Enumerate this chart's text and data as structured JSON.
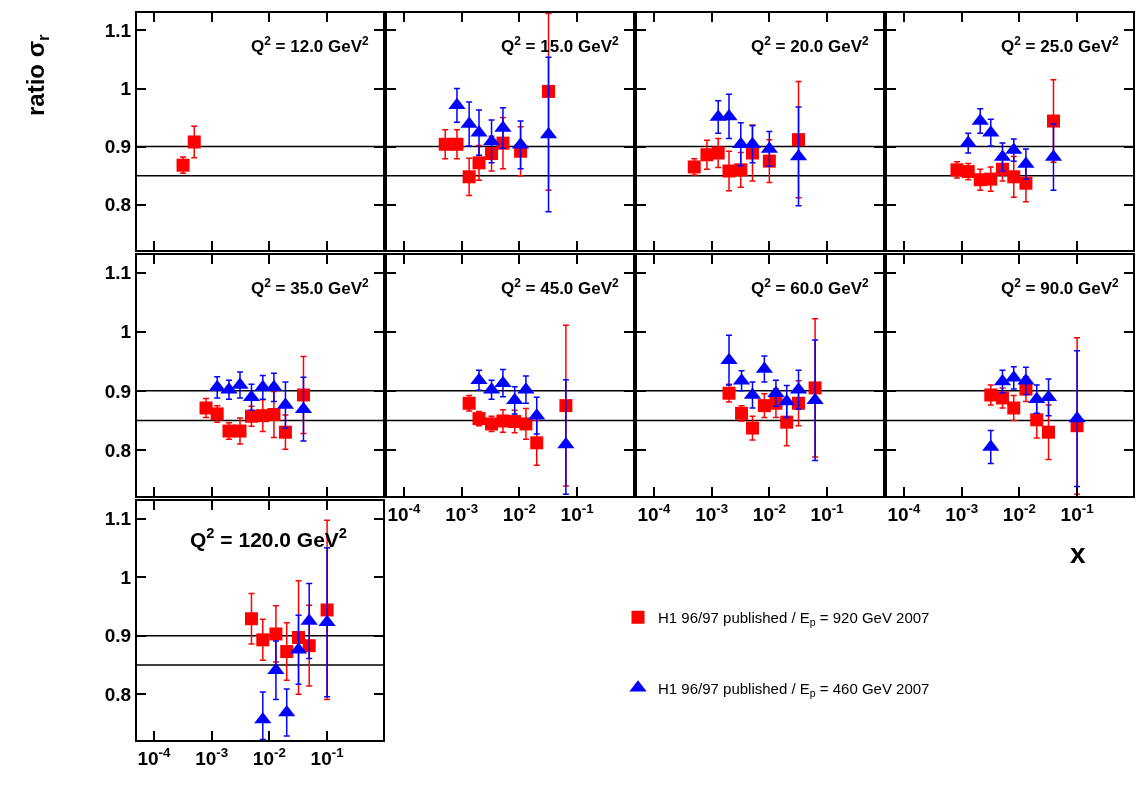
{
  "chart_data": [
    {
      "type": "scatter",
      "title": "Q$^{2}$ = 12.0 GeV$^{2}$",
      "ylabel": "ratio σ$_{r}$",
      "log": "x",
      "xlim": [
        5.1e-05,
        0.93
      ],
      "ylim": [
        0.722,
        1.13
      ],
      "xticks": [
        {
          "value": 0.0001,
          "label": "10$^{-4}$"
        },
        {
          "value": 0.001,
          "label": "10$^{-3}$"
        },
        {
          "value": 0.01,
          "label": "10$^{-2}$"
        },
        {
          "value": 0.1,
          "label": "10$^{-1}$"
        }
      ],
      "yticks": [
        0.8,
        0.9,
        1,
        1.1
      ],
      "tick_labels": "y",
      "grid": false,
      "ref_lines": [
        {
          "axis": "y",
          "value": 0.9,
          "color": "#000000"
        },
        {
          "axis": "y",
          "value": 0.85,
          "color": "#000000"
        }
      ],
      "series": [
        {
          "color": "#ff0000",
          "marker": "square",
          "x": [
            0.00032,
            0.0005
          ],
          "values": [
            0.868,
            0.908
          ],
          "errors": [
            0.014,
            0.027
          ]
        }
      ]
    },
    {
      "type": "scatter",
      "title": "Q$^{2}$ = 15.0 GeV$^{2}$",
      "log": "x",
      "xlim": [
        5.1e-05,
        0.93
      ],
      "ylim": [
        0.722,
        1.13
      ],
      "xticks": [
        {
          "value": 0.0001,
          "label": "10$^{-4}$"
        },
        {
          "value": 0.001,
          "label": "10$^{-3}$"
        },
        {
          "value": 0.01,
          "label": "10$^{-2}$"
        },
        {
          "value": 0.1,
          "label": "10$^{-1}$"
        }
      ],
      "yticks": [
        0.8,
        0.9,
        1,
        1.1
      ],
      "tick_labels": false,
      "grid": false,
      "ref_lines": [
        {
          "axis": "y",
          "value": 0.9,
          "color": "#000000"
        },
        {
          "axis": "y",
          "value": 0.85,
          "color": "#000000"
        }
      ],
      "series": [
        {
          "color": "#ff0000",
          "marker": "square",
          "x": [
            0.00052,
            0.00083,
            0.00135,
            0.002,
            0.0033,
            0.0052,
            0.0105,
            0.032
          ],
          "values": [
            0.904,
            0.904,
            0.848,
            0.872,
            0.888,
            0.906,
            0.892,
            0.995
          ],
          "errors": [
            0.025,
            0.025,
            0.032,
            0.03,
            0.03,
            0.044,
            0.042,
            [
              0.825,
              1.129
            ]
          ]
        },
        {
          "color": "#0000ff",
          "marker": "triangle",
          "x": [
            0.00083,
            0.00135,
            0.002,
            0.0033,
            0.0052,
            0.0105,
            0.032
          ],
          "values": [
            0.971,
            0.939,
            0.924,
            0.909,
            0.932,
            0.903,
            0.921
          ],
          "errors": [
            0.029,
            0.038,
            0.039,
            0.037,
            0.035,
            0.041,
            0.133
          ]
        }
      ]
    },
    {
      "type": "scatter",
      "title": "Q$^{2}$ = 20.0 GeV$^{2}$",
      "log": "x",
      "xlim": [
        5.1e-05,
        0.93
      ],
      "ylim": [
        0.722,
        1.13
      ],
      "xticks": [
        {
          "value": 0.0001,
          "label": "10$^{-4}$"
        },
        {
          "value": 0.001,
          "label": "10$^{-3}$"
        },
        {
          "value": 0.01,
          "label": "10$^{-2}$"
        },
        {
          "value": 0.1,
          "label": "10$^{-1}$"
        }
      ],
      "yticks": [
        0.8,
        0.9,
        1,
        1.1
      ],
      "tick_labels": false,
      "grid": false,
      "ref_lines": [
        {
          "axis": "y",
          "value": 0.9,
          "color": "#000000"
        },
        {
          "axis": "y",
          "value": 0.85,
          "color": "#000000"
        }
      ],
      "series": [
        {
          "color": "#ff0000",
          "marker": "square",
          "x": [
            0.0005,
            0.00083,
            0.0013,
            0.002,
            0.0032,
            0.0051,
            0.01,
            0.032
          ],
          "values": [
            0.865,
            0.886,
            0.889,
            0.858,
            0.86,
            0.889,
            0.875,
            0.912
          ],
          "errors": [
            0.014,
            0.025,
            0.025,
            0.034,
            0.03,
            0.048,
            0.037,
            0.1
          ]
        },
        {
          "color": "#0000ff",
          "marker": "triangle",
          "x": [
            0.0013,
            0.002,
            0.0032,
            0.0051,
            0.01,
            0.032
          ],
          "values": [
            0.951,
            0.952,
            0.904,
            0.904,
            0.896,
            0.883
          ],
          "errors": [
            0.028,
            0.038,
            0.037,
            0.032,
            0.03,
            0.085
          ]
        }
      ]
    },
    {
      "type": "scatter",
      "title": "Q$^{2}$ = 25.0 GeV$^{2}$",
      "log": "x",
      "xlim": [
        5.1e-05,
        0.93
      ],
      "ylim": [
        0.722,
        1.13
      ],
      "xticks": [
        {
          "value": 0.0001,
          "label": "10$^{-4}$"
        },
        {
          "value": 0.001,
          "label": "10$^{-3}$"
        },
        {
          "value": 0.01,
          "label": "10$^{-2}$"
        },
        {
          "value": 0.1,
          "label": "10$^{-1}$"
        }
      ],
      "yticks": [
        0.8,
        0.9,
        1,
        1.1
      ],
      "tick_labels": false,
      "grid": false,
      "ref_lines": [
        {
          "axis": "y",
          "value": 0.9,
          "color": "#000000"
        },
        {
          "axis": "y",
          "value": 0.85,
          "color": "#000000"
        }
      ],
      "series": [
        {
          "color": "#ff0000",
          "marker": "square",
          "x": [
            0.00083,
            0.0013,
            0.0021,
            0.0032,
            0.0051,
            0.008,
            0.013,
            0.039
          ],
          "values": [
            0.86,
            0.857,
            0.843,
            0.844,
            0.861,
            0.848,
            0.837,
            0.944
          ],
          "errors": [
            0.014,
            0.014,
            0.018,
            0.021,
            0.02,
            0.035,
            0.032,
            0.071
          ]
        },
        {
          "color": "#0000ff",
          "marker": "triangle",
          "x": [
            0.0013,
            0.0021,
            0.0032,
            0.0051,
            0.008,
            0.013,
            0.039
          ],
          "values": [
            0.906,
            0.944,
            0.924,
            0.882,
            0.894,
            0.87,
            0.882
          ],
          "errors": [
            0.017,
            0.021,
            0.023,
            0.024,
            0.019,
            0.026,
            0.057
          ]
        }
      ]
    },
    {
      "type": "scatter",
      "title": "Q$^{2}$ = 35.0 GeV$^{2}$",
      "log": "x",
      "xlim": [
        5.1e-05,
        0.93
      ],
      "ylim": [
        0.722,
        1.13
      ],
      "xticks": [
        {
          "value": 0.0001,
          "label": "10$^{-4}$"
        },
        {
          "value": 0.001,
          "label": "10$^{-3}$"
        },
        {
          "value": 0.01,
          "label": "10$^{-2}$"
        },
        {
          "value": 0.1,
          "label": "10$^{-1}$"
        }
      ],
      "yticks": [
        0.8,
        0.9,
        1,
        1.1
      ],
      "tick_labels": "y",
      "grid": false,
      "ref_lines": [
        {
          "axis": "y",
          "value": 0.9,
          "color": "#000000"
        },
        {
          "axis": "y",
          "value": 0.85,
          "color": "#000000"
        }
      ],
      "series": [
        {
          "color": "#ff0000",
          "marker": "square",
          "x": [
            0.0008,
            0.00125,
            0.002,
            0.0031,
            0.0049,
            0.0077,
            0.012,
            0.019,
            0.039
          ],
          "values": [
            0.871,
            0.861,
            0.832,
            0.832,
            0.857,
            0.858,
            0.86,
            0.83,
            0.893
          ],
          "errors": [
            0.016,
            0.014,
            0.014,
            0.022,
            0.017,
            0.027,
            0.039,
            0.029,
            0.065
          ]
        },
        {
          "color": "#0000ff",
          "marker": "triangle",
          "x": [
            0.00125,
            0.002,
            0.0031,
            0.0049,
            0.0077,
            0.012,
            0.019,
            0.039
          ],
          "values": [
            0.906,
            0.902,
            0.91,
            0.889,
            0.906,
            0.906,
            0.876,
            0.869
          ],
          "errors": [
            0.018,
            0.016,
            0.022,
            0.022,
            0.02,
            0.024,
            0.039,
            0.054
          ]
        }
      ]
    },
    {
      "type": "scatter",
      "title": "Q$^{2}$ = 45.0 GeV$^{2}$",
      "log": "x",
      "xlim": [
        5.1e-05,
        0.93
      ],
      "ylim": [
        0.722,
        1.13
      ],
      "xticks": [
        {
          "value": 0.0001,
          "label": "10$^{-4}$"
        },
        {
          "value": 0.001,
          "label": "10$^{-3}$"
        },
        {
          "value": 0.01,
          "label": "10$^{-2}$"
        },
        {
          "value": 0.1,
          "label": "10$^{-1}$"
        }
      ],
      "yticks": [
        0.8,
        0.9,
        1,
        1.1
      ],
      "tick_labels": "x",
      "grid": false,
      "ref_lines": [
        {
          "axis": "y",
          "value": 0.9,
          "color": "#000000"
        },
        {
          "axis": "y",
          "value": 0.85,
          "color": "#000000"
        }
      ],
      "series": [
        {
          "color": "#ff0000",
          "marker": "square",
          "x": [
            0.00135,
            0.002,
            0.0033,
            0.0052,
            0.0083,
            0.013,
            0.02,
            0.064
          ],
          "values": [
            0.879,
            0.853,
            0.844,
            0.849,
            0.848,
            0.844,
            0.812,
            0.875
          ],
          "errors": [
            0.013,
            0.012,
            0.013,
            0.019,
            0.019,
            0.026,
            0.038,
            0.136
          ]
        },
        {
          "color": "#0000ff",
          "marker": "triangle",
          "x": [
            0.002,
            0.0033,
            0.0052,
            0.0083,
            0.013,
            0.02,
            0.064
          ],
          "values": [
            0.918,
            0.902,
            0.913,
            0.884,
            0.902,
            0.858,
            0.809
          ],
          "errors": [
            0.017,
            0.016,
            0.023,
            0.023,
            0.023,
            0.031,
            [
              0.725,
              0.919
            ]
          ]
        }
      ]
    },
    {
      "type": "scatter",
      "title": "Q$^{2}$ = 60.0 GeV$^{2}$",
      "log": "x",
      "xlim": [
        5.1e-05,
        0.93
      ],
      "ylim": [
        0.722,
        1.13
      ],
      "xticks": [
        {
          "value": 0.0001,
          "label": "10$^{-4}$"
        },
        {
          "value": 0.001,
          "label": "10$^{-3}$"
        },
        {
          "value": 0.01,
          "label": "10$^{-2}$"
        },
        {
          "value": 0.1,
          "label": "10$^{-1}$"
        }
      ],
      "yticks": [
        0.8,
        0.9,
        1,
        1.1
      ],
      "tick_labels": "x",
      "grid": false,
      "ref_lines": [
        {
          "axis": "y",
          "value": 0.9,
          "color": "#000000"
        },
        {
          "axis": "y",
          "value": 0.85,
          "color": "#000000"
        }
      ],
      "series": [
        {
          "color": "#ff0000",
          "marker": "square",
          "x": [
            0.002,
            0.0033,
            0.0051,
            0.0082,
            0.013,
            0.02,
            0.032,
            0.062
          ],
          "values": [
            0.896,
            0.862,
            0.837,
            0.875,
            0.879,
            0.847,
            0.879,
            0.905
          ],
          "errors": [
            0.015,
            0.013,
            0.02,
            0.02,
            0.024,
            0.04,
            0.038,
            0.117
          ]
        },
        {
          "color": "#0000ff",
          "marker": "triangle",
          "x": [
            0.002,
            0.0033,
            0.0051,
            0.0082,
            0.013,
            0.02,
            0.032,
            0.062
          ],
          "values": [
            0.952,
            0.917,
            0.893,
            0.937,
            0.896,
            0.882,
            0.902,
            0.884
          ],
          "errors": [
            0.042,
            0.017,
            0.022,
            0.022,
            0.022,
            0.027,
            0.033,
            0.102
          ]
        }
      ]
    },
    {
      "type": "scatter",
      "title": "Q$^{2}$ = 90.0 GeV$^{2}$",
      "xlabel": "x",
      "log": "x",
      "xlim": [
        5.1e-05,
        0.93
      ],
      "ylim": [
        0.722,
        1.13
      ],
      "xticks": [
        {
          "value": 0.0001,
          "label": "10$^{-4}$"
        },
        {
          "value": 0.001,
          "label": "10$^{-3}$"
        },
        {
          "value": 0.01,
          "label": "10$^{-2}$"
        },
        {
          "value": 0.1,
          "label": "10$^{-1}$"
        }
      ],
      "yticks": [
        0.8,
        0.9,
        1,
        1.1
      ],
      "tick_labels": "x",
      "grid": false,
      "ref_lines": [
        {
          "axis": "y",
          "value": 0.9,
          "color": "#000000"
        },
        {
          "axis": "y",
          "value": 0.85,
          "color": "#000000"
        }
      ],
      "series": [
        {
          "color": "#ff0000",
          "marker": "square",
          "x": [
            0.0032,
            0.0051,
            0.008,
            0.013,
            0.02,
            0.032,
            0.1
          ],
          "values": [
            0.893,
            0.888,
            0.871,
            0.903,
            0.851,
            0.83,
            0.841
          ],
          "errors": [
            0.017,
            0.017,
            0.021,
            0.021,
            0.031,
            0.046,
            [
              0.725,
              0.99
            ]
          ]
        },
        {
          "color": "#0000ff",
          "marker": "triangle",
          "x": [
            0.0032,
            0.0051,
            0.008,
            0.013,
            0.02,
            0.032,
            0.1
          ],
          "values": [
            0.805,
            0.916,
            0.922,
            0.917,
            0.886,
            0.889,
            0.853
          ],
          "errors": [
            0.028,
            0.019,
            0.019,
            0.023,
            0.024,
            0.031,
            0.115
          ]
        }
      ]
    },
    {
      "type": "scatter",
      "title": "Q$^{2}$ = 120.0 GeV$^{2}$",
      "log": "x",
      "xlim": [
        5.1e-05,
        0.93
      ],
      "ylim": [
        0.722,
        1.13
      ],
      "xticks": [
        {
          "value": 0.0001,
          "label": "10$^{-4}$"
        },
        {
          "value": 0.001,
          "label": "10$^{-3}$"
        },
        {
          "value": 0.01,
          "label": "10$^{-2}$"
        },
        {
          "value": 0.1,
          "label": "10$^{-1}$"
        }
      ],
      "yticks": [
        0.8,
        0.9,
        1,
        1.1
      ],
      "grid": false,
      "legend": "right",
      "ref_lines": [
        {
          "axis": "y",
          "value": 0.9,
          "color": "#000000"
        },
        {
          "axis": "y",
          "value": 0.85,
          "color": "#000000"
        }
      ],
      "series": [
        {
          "name": "H1 96/97 published / E$_{p}$ = 920 GeV 2007",
          "color": "#ff0000",
          "marker": "square",
          "x": [
            0.0049,
            0.0077,
            0.013,
            0.02,
            0.032,
            0.049,
            0.1
          ],
          "values": [
            0.929,
            0.893,
            0.903,
            0.873,
            0.897,
            0.883,
            0.944
          ],
          "errors": [
            0.043,
            0.035,
            0.048,
            0.049,
            0.097,
            0.069,
            0.153
          ]
        },
        {
          "name": "H1 96/97 published / E$_{p}$ = 460 GeV 2007",
          "color": "#0000ff",
          "marker": "triangle",
          "x": [
            0.0077,
            0.013,
            0.02,
            0.032,
            0.049,
            0.1
          ],
          "values": [
            0.757,
            0.841,
            0.769,
            0.876,
            0.925,
            0.923
          ],
          "errors": [
            [
              0.723,
              0.804
            ],
            0.05,
            0.04,
            0.059,
            0.064,
            0.127
          ]
        }
      ]
    }
  ]
}
